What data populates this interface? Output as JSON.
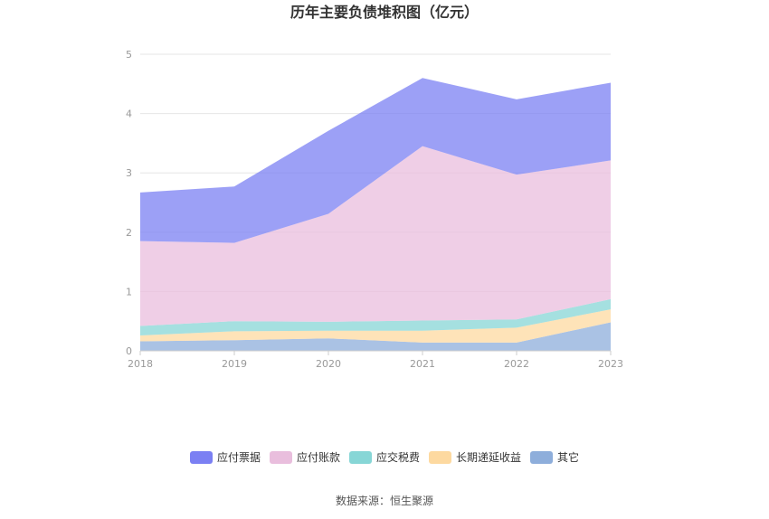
{
  "chart_data": {
    "type": "area",
    "stacked": true,
    "title": "历年主要负债堆积图（亿元）",
    "categories": [
      "2018",
      "2019",
      "2020",
      "2021",
      "2022",
      "2023"
    ],
    "y_ticks": [
      "0",
      "1",
      "2",
      "3",
      "4",
      "5"
    ],
    "ylim": [
      0,
      5
    ],
    "grid": true,
    "legend_position": "bottom",
    "series": [
      {
        "name": "其它",
        "color": "#8eaedb",
        "values": [
          0.16,
          0.18,
          0.21,
          0.14,
          0.14,
          0.48
        ]
      },
      {
        "name": "长期递延收益",
        "color": "#fdd9a0",
        "values": [
          0.1,
          0.15,
          0.13,
          0.2,
          0.25,
          0.22
        ]
      },
      {
        "name": "应交税费",
        "color": "#87d6d6",
        "values": [
          0.16,
          0.17,
          0.15,
          0.17,
          0.14,
          0.17
        ]
      },
      {
        "name": "应付账款",
        "color": "#e9bedd",
        "values": [
          1.43,
          1.32,
          1.82,
          2.94,
          2.44,
          2.34
        ]
      },
      {
        "name": "应付票据",
        "color": "#7b80f3",
        "values": [
          0.82,
          0.95,
          1.4,
          1.15,
          1.27,
          1.31
        ]
      }
    ],
    "legend_order": [
      "应付票据",
      "应付账款",
      "应交税费",
      "长期递延收益",
      "其它"
    ]
  },
  "footer": {
    "source": "数据来源：恒生聚源"
  }
}
